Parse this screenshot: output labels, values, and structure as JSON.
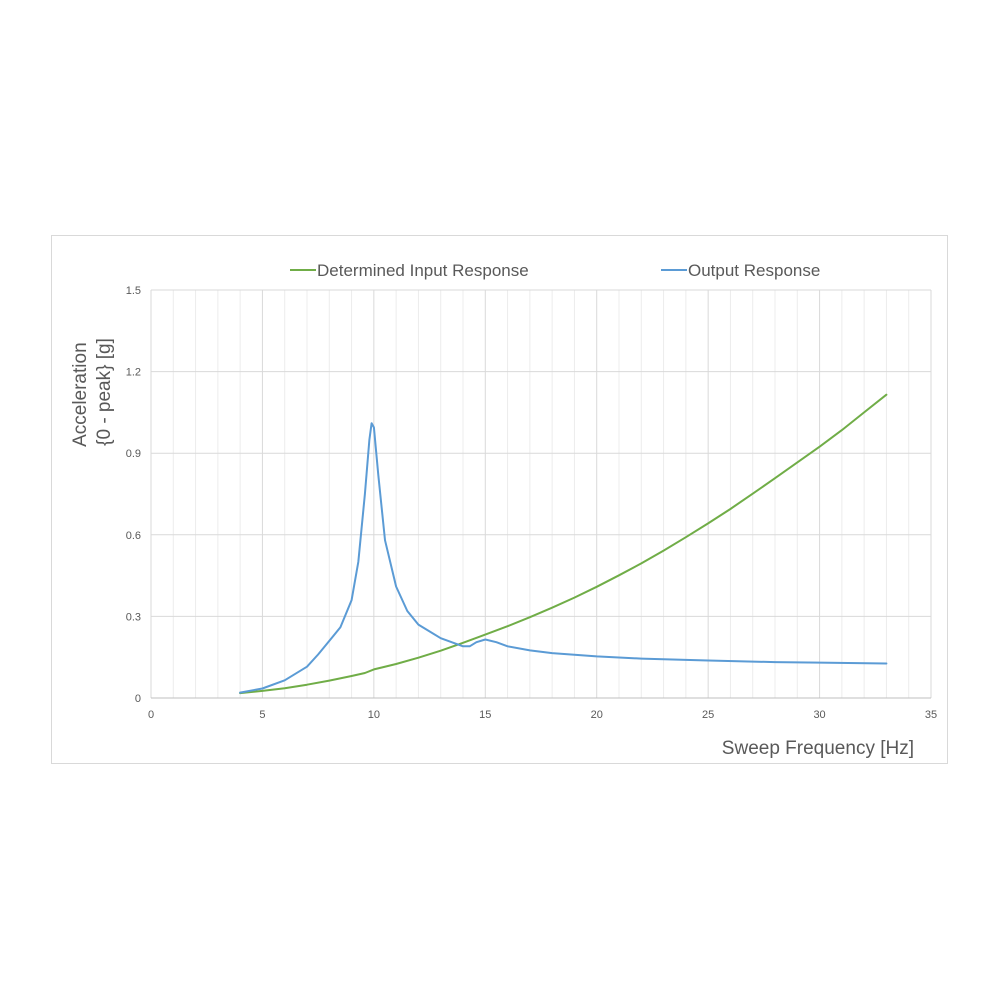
{
  "chart_data": {
    "type": "line",
    "title": "",
    "xlabel": "Sweep Frequency [Hz]",
    "ylabel_lines": [
      "Acceleration",
      "{0 - peak} [g]"
    ],
    "xlim": [
      0,
      35
    ],
    "ylim": [
      0,
      1.5
    ],
    "x_ticks": [
      "0",
      "5",
      "10",
      "15",
      "20",
      "25",
      "30",
      "35"
    ],
    "y_ticks": [
      "0",
      "0.3",
      "0.6",
      "0.9",
      "1.2",
      "1.5"
    ],
    "grid": true,
    "legend_position": "top",
    "series": [
      {
        "name": "Determined Input Response",
        "color": "#70ad47",
        "x": [
          4,
          5,
          6,
          7,
          8,
          9,
          9.6,
          10,
          11,
          12,
          13,
          14,
          15,
          16,
          17,
          18,
          19,
          20,
          21,
          22,
          23,
          24,
          25,
          26,
          27,
          28,
          29,
          30,
          31,
          32,
          33
        ],
        "y": [
          0.018,
          0.026,
          0.036,
          0.049,
          0.064,
          0.081,
          0.092,
          0.105,
          0.125,
          0.148,
          0.174,
          0.203,
          0.233,
          0.264,
          0.297,
          0.332,
          0.369,
          0.409,
          0.451,
          0.495,
          0.542,
          0.591,
          0.642,
          0.695,
          0.751,
          0.808,
          0.866,
          0.924,
          0.985,
          1.05,
          1.115
        ]
      },
      {
        "name": "Output Response",
        "color": "#5b9bd5",
        "x": [
          4,
          5,
          6,
          7,
          7.5,
          8,
          8.5,
          9,
          9.3,
          9.6,
          9.8,
          9.9,
          10,
          10.2,
          10.5,
          11,
          11.5,
          12,
          13,
          14,
          14.3,
          14.6,
          15,
          15.5,
          16,
          17,
          18,
          20,
          22,
          25,
          28,
          30,
          33
        ],
        "y": [
          0.02,
          0.035,
          0.065,
          0.115,
          0.16,
          0.21,
          0.26,
          0.36,
          0.5,
          0.75,
          0.95,
          1.01,
          0.995,
          0.82,
          0.58,
          0.41,
          0.32,
          0.27,
          0.22,
          0.19,
          0.19,
          0.205,
          0.215,
          0.205,
          0.19,
          0.175,
          0.165,
          0.153,
          0.145,
          0.138,
          0.132,
          0.13,
          0.127
        ]
      }
    ]
  }
}
